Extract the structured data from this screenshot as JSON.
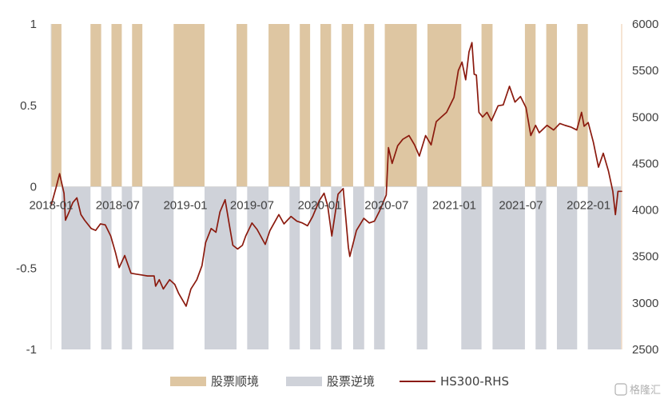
{
  "chart_data": {
    "type": "bar",
    "x_ticks": [
      "2018-01",
      "2018-07",
      "2019-01",
      "2019-07",
      "2020-01",
      "2020-07",
      "2021-01",
      "2021-07",
      "2022-01"
    ],
    "y_left": {
      "ylim": [
        -1,
        1
      ],
      "ticks": [
        "1",
        "0.5",
        "0",
        "-0.5",
        "-1"
      ]
    },
    "y_right": {
      "ylim": [
        2500,
        6000
      ],
      "ticks": [
        "6000",
        "5500",
        "5000",
        "4500",
        "4000",
        "3500",
        "3000",
        "2500"
      ]
    },
    "x_range": [
      "2018-01-01",
      "2022-04-01"
    ],
    "regimes": [
      {
        "start": "2018-01-01",
        "end": "2018-01-29",
        "value": 1
      },
      {
        "start": "2018-01-29",
        "end": "2018-04-18",
        "value": -1
      },
      {
        "start": "2018-04-18",
        "end": "2018-05-17",
        "value": 1
      },
      {
        "start": "2018-05-17",
        "end": "2018-06-14",
        "value": -1
      },
      {
        "start": "2018-06-14",
        "end": "2018-07-12",
        "value": 1
      },
      {
        "start": "2018-07-12",
        "end": "2018-08-09",
        "value": -1
      },
      {
        "start": "2018-08-09",
        "end": "2018-09-06",
        "value": 1
      },
      {
        "start": "2018-09-06",
        "end": "2018-11-30",
        "value": -1
      },
      {
        "start": "2018-11-30",
        "end": "2019-02-22",
        "value": 1
      },
      {
        "start": "2019-02-22",
        "end": "2019-05-20",
        "value": -1
      },
      {
        "start": "2019-05-20",
        "end": "2019-06-18",
        "value": 1
      },
      {
        "start": "2019-06-18",
        "end": "2019-08-15",
        "value": -1
      },
      {
        "start": "2019-08-15",
        "end": "2019-10-11",
        "value": 1
      },
      {
        "start": "2019-10-11",
        "end": "2019-11-08",
        "value": -1
      },
      {
        "start": "2019-11-08",
        "end": "2019-12-06",
        "value": 1
      },
      {
        "start": "2019-12-06",
        "end": "2020-01-03",
        "value": -1
      },
      {
        "start": "2020-01-03",
        "end": "2020-02-01",
        "value": 1
      },
      {
        "start": "2020-02-01",
        "end": "2020-03-01",
        "value": -1
      },
      {
        "start": "2020-03-01",
        "end": "2020-04-01",
        "value": 1
      },
      {
        "start": "2020-04-01",
        "end": "2020-05-01",
        "value": -1
      },
      {
        "start": "2020-05-01",
        "end": "2020-05-28",
        "value": 1
      },
      {
        "start": "2020-05-28",
        "end": "2020-06-26",
        "value": -1
      },
      {
        "start": "2020-06-26",
        "end": "2020-09-21",
        "value": 1
      },
      {
        "start": "2020-09-21",
        "end": "2020-10-20",
        "value": -1
      },
      {
        "start": "2020-10-20",
        "end": "2021-01-20",
        "value": 1
      },
      {
        "start": "2021-01-20",
        "end": "2021-03-16",
        "value": -1
      },
      {
        "start": "2021-03-16",
        "end": "2021-04-15",
        "value": 1
      },
      {
        "start": "2021-04-15",
        "end": "2021-07-12",
        "value": -1
      },
      {
        "start": "2021-07-12",
        "end": "2021-08-10",
        "value": 1
      },
      {
        "start": "2021-08-10",
        "end": "2021-09-08",
        "value": -1
      },
      {
        "start": "2021-09-08",
        "end": "2021-10-07",
        "value": 1
      },
      {
        "start": "2021-10-07",
        "end": "2021-12-01",
        "value": -1
      },
      {
        "start": "2021-12-01",
        "end": "2021-12-30",
        "value": 1
      },
      {
        "start": "2021-12-30",
        "end": "2022-04-01",
        "value": -1
      }
    ],
    "hs300": [
      {
        "x": "2018-01-01",
        "y": 4050
      },
      {
        "x": "2018-01-15",
        "y": 4250
      },
      {
        "x": "2018-01-24",
        "y": 4390
      },
      {
        "x": "2018-02-05",
        "y": 4180
      },
      {
        "x": "2018-02-09",
        "y": 3890
      },
      {
        "x": "2018-02-20",
        "y": 3990
      },
      {
        "x": "2018-03-01",
        "y": 4080
      },
      {
        "x": "2018-03-12",
        "y": 4130
      },
      {
        "x": "2018-03-23",
        "y": 3950
      },
      {
        "x": "2018-04-02",
        "y": 3890
      },
      {
        "x": "2018-04-20",
        "y": 3800
      },
      {
        "x": "2018-05-02",
        "y": 3780
      },
      {
        "x": "2018-05-15",
        "y": 3850
      },
      {
        "x": "2018-05-28",
        "y": 3840
      },
      {
        "x": "2018-06-12",
        "y": 3720
      },
      {
        "x": "2018-06-25",
        "y": 3540
      },
      {
        "x": "2018-07-05",
        "y": 3380
      },
      {
        "x": "2018-07-20",
        "y": 3510
      },
      {
        "x": "2018-08-06",
        "y": 3320
      },
      {
        "x": "2018-08-20",
        "y": 3310
      },
      {
        "x": "2018-09-05",
        "y": 3300
      },
      {
        "x": "2018-09-20",
        "y": 3290
      },
      {
        "x": "2018-10-08",
        "y": 3290
      },
      {
        "x": "2018-10-12",
        "y": 3180
      },
      {
        "x": "2018-10-22",
        "y": 3250
      },
      {
        "x": "2018-11-02",
        "y": 3150
      },
      {
        "x": "2018-11-19",
        "y": 3250
      },
      {
        "x": "2018-12-03",
        "y": 3200
      },
      {
        "x": "2018-12-14",
        "y": 3100
      },
      {
        "x": "2019-01-03",
        "y": 2965
      },
      {
        "x": "2019-01-16",
        "y": 3150
      },
      {
        "x": "2019-02-01",
        "y": 3250
      },
      {
        "x": "2019-02-15",
        "y": 3400
      },
      {
        "x": "2019-02-25",
        "y": 3650
      },
      {
        "x": "2019-03-12",
        "y": 3800
      },
      {
        "x": "2019-03-25",
        "y": 3760
      },
      {
        "x": "2019-04-05",
        "y": 3980
      },
      {
        "x": "2019-04-19",
        "y": 4110
      },
      {
        "x": "2019-04-30",
        "y": 3850
      },
      {
        "x": "2019-05-10",
        "y": 3620
      },
      {
        "x": "2019-05-23",
        "y": 3580
      },
      {
        "x": "2019-06-05",
        "y": 3620
      },
      {
        "x": "2019-06-14",
        "y": 3720
      },
      {
        "x": "2019-07-01",
        "y": 3860
      },
      {
        "x": "2019-07-15",
        "y": 3790
      },
      {
        "x": "2019-08-06",
        "y": 3630
      },
      {
        "x": "2019-08-19",
        "y": 3780
      },
      {
        "x": "2019-09-05",
        "y": 3900
      },
      {
        "x": "2019-09-12",
        "y": 3950
      },
      {
        "x": "2019-09-26",
        "y": 3850
      },
      {
        "x": "2019-10-15",
        "y": 3930
      },
      {
        "x": "2019-10-31",
        "y": 3880
      },
      {
        "x": "2019-11-15",
        "y": 3860
      },
      {
        "x": "2019-11-29",
        "y": 3830
      },
      {
        "x": "2019-12-13",
        "y": 3930
      },
      {
        "x": "2019-12-31",
        "y": 4100
      },
      {
        "x": "2020-01-13",
        "y": 4180
      },
      {
        "x": "2020-01-23",
        "y": 4040
      },
      {
        "x": "2020-02-03",
        "y": 3720
      },
      {
        "x": "2020-02-20",
        "y": 4170
      },
      {
        "x": "2020-03-05",
        "y": 4230
      },
      {
        "x": "2020-03-19",
        "y": 3600
      },
      {
        "x": "2020-03-23",
        "y": 3500
      },
      {
        "x": "2020-04-10",
        "y": 3780
      },
      {
        "x": "2020-04-30",
        "y": 3910
      },
      {
        "x": "2020-05-15",
        "y": 3860
      },
      {
        "x": "2020-05-29",
        "y": 3880
      },
      {
        "x": "2020-06-12",
        "y": 3990
      },
      {
        "x": "2020-06-30",
        "y": 4160
      },
      {
        "x": "2020-07-06",
        "y": 4670
      },
      {
        "x": "2020-07-16",
        "y": 4500
      },
      {
        "x": "2020-07-31",
        "y": 4690
      },
      {
        "x": "2020-08-14",
        "y": 4760
      },
      {
        "x": "2020-08-31",
        "y": 4800
      },
      {
        "x": "2020-09-15",
        "y": 4700
      },
      {
        "x": "2020-09-28",
        "y": 4580
      },
      {
        "x": "2020-10-15",
        "y": 4800
      },
      {
        "x": "2020-10-30",
        "y": 4700
      },
      {
        "x": "2020-11-13",
        "y": 4950
      },
      {
        "x": "2020-11-27",
        "y": 5000
      },
      {
        "x": "2020-12-11",
        "y": 5050
      },
      {
        "x": "2020-12-31",
        "y": 5210
      },
      {
        "x": "2021-01-12",
        "y": 5500
      },
      {
        "x": "2021-01-22",
        "y": 5590
      },
      {
        "x": "2021-02-01",
        "y": 5400
      },
      {
        "x": "2021-02-10",
        "y": 5700
      },
      {
        "x": "2021-02-18",
        "y": 5800
      },
      {
        "x": "2021-02-24",
        "y": 5460
      },
      {
        "x": "2021-03-02",
        "y": 5450
      },
      {
        "x": "2021-03-09",
        "y": 5050
      },
      {
        "x": "2021-03-19",
        "y": 5000
      },
      {
        "x": "2021-03-31",
        "y": 5050
      },
      {
        "x": "2021-04-12",
        "y": 4960
      },
      {
        "x": "2021-04-30",
        "y": 5120
      },
      {
        "x": "2021-05-14",
        "y": 5130
      },
      {
        "x": "2021-05-31",
        "y": 5330
      },
      {
        "x": "2021-06-15",
        "y": 5160
      },
      {
        "x": "2021-06-30",
        "y": 5220
      },
      {
        "x": "2021-07-15",
        "y": 5100
      },
      {
        "x": "2021-07-28",
        "y": 4800
      },
      {
        "x": "2021-08-10",
        "y": 4910
      },
      {
        "x": "2021-08-20",
        "y": 4830
      },
      {
        "x": "2021-09-10",
        "y": 4910
      },
      {
        "x": "2021-09-28",
        "y": 4860
      },
      {
        "x": "2021-10-15",
        "y": 4930
      },
      {
        "x": "2021-10-29",
        "y": 4910
      },
      {
        "x": "2021-11-15",
        "y": 4890
      },
      {
        "x": "2021-11-30",
        "y": 4860
      },
      {
        "x": "2021-12-13",
        "y": 5050
      },
      {
        "x": "2021-12-20",
        "y": 4900
      },
      {
        "x": "2021-12-31",
        "y": 4940
      },
      {
        "x": "2022-01-14",
        "y": 4730
      },
      {
        "x": "2022-01-28",
        "y": 4460
      },
      {
        "x": "2022-02-10",
        "y": 4610
      },
      {
        "x": "2022-02-24",
        "y": 4420
      },
      {
        "x": "2022-03-08",
        "y": 4200
      },
      {
        "x": "2022-03-15",
        "y": 3950
      },
      {
        "x": "2022-03-22",
        "y": 4200
      },
      {
        "x": "2022-04-01",
        "y": 4200
      }
    ],
    "colors": {
      "shun": "#dec6a2",
      "ni": "#cfd2d9",
      "line": "#8b1a0e",
      "axis_right": "#f3dcc6"
    },
    "legend": [
      {
        "label": "股票顺境",
        "kind": "bar",
        "color_key": "shun"
      },
      {
        "label": "股票逆境",
        "kind": "bar",
        "color_key": "ni"
      },
      {
        "label": "HS300-RHS",
        "kind": "line",
        "color_key": "line"
      }
    ],
    "legend_position": "bottom-center",
    "grid": false
  },
  "watermark": "格隆汇"
}
